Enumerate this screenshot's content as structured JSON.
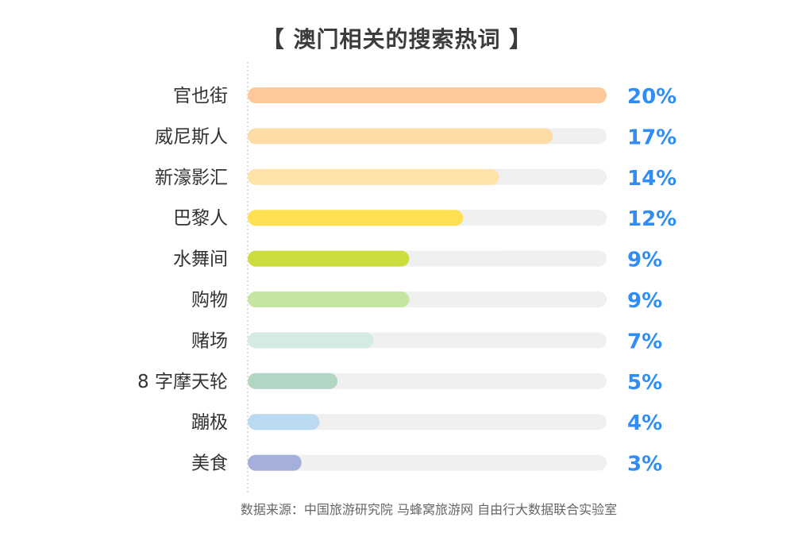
{
  "chart_data": {
    "type": "bar",
    "orientation": "horizontal",
    "title": "【 澳门相关的搜索热词 】",
    "categories": [
      "官也街",
      "威尼斯人",
      "新濠影汇",
      "巴黎人",
      "水舞间",
      "购物",
      "赌场",
      "8 字摩天轮",
      "蹦极",
      "美食"
    ],
    "values": [
      20,
      17,
      14,
      12,
      9,
      9,
      7,
      5,
      4,
      3
    ],
    "value_labels": [
      "20%",
      "17%",
      "14%",
      "12%",
      "9%",
      "9%",
      "7%",
      "5%",
      "4%",
      "3%"
    ],
    "xlim": [
      0,
      20
    ],
    "unit": "%",
    "colors": [
      "#FDC99A",
      "#FDDCA6",
      "#FFE3A8",
      "#FEE050",
      "#CCDD40",
      "#C6E5A2",
      "#D5EAE2",
      "#B0D6C4",
      "#BADAF2",
      "#A4AFDC"
    ],
    "track_color": "#F0F0F0",
    "grid": false
  },
  "source": "数据来源：中国旅游研究院 马蜂窝旅游网 自由行大数据联合实验室"
}
